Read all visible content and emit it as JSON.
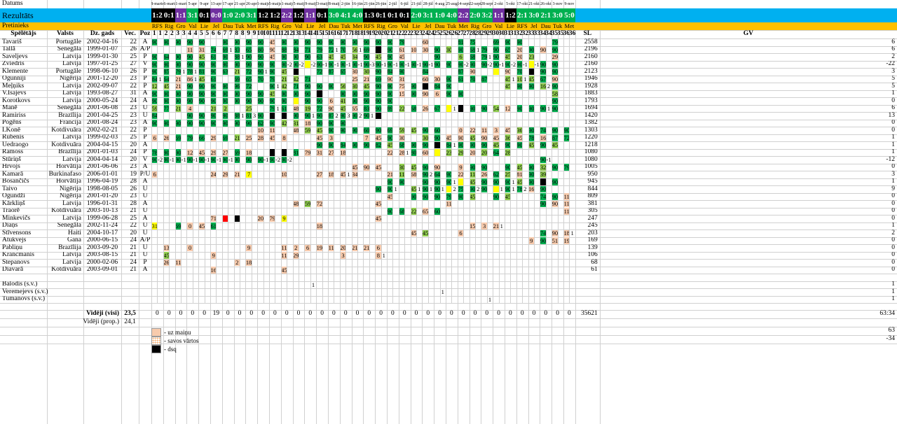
{
  "sheet": {
    "labels": {
      "datums": "Datums",
      "rezultats": "Rezultāts",
      "pretinieks": "Pretinieks",
      "speletajs": "Spēlētājs",
      "valsts": "Valsts",
      "dz_gads": "Dz. gads",
      "vec": "Vec.",
      "poz": "Poz",
      "sl": "SL",
      "gv": "GV"
    },
    "dates": [
      "8-marts",
      "16-marts",
      "31-marts",
      "5-apr",
      "9-apr",
      "13-apr",
      "17-apr",
      "21-apr",
      "26-apr",
      "1-maijs",
      "5-maijs",
      "11-maijs",
      "15-maijs",
      "19-maijs",
      "23-maijs",
      "28-maijs",
      "2-jūn",
      "16-jūn",
      "21-jūn",
      "26-jūn",
      "2-jūl",
      "6-jūl",
      "21-jūl",
      "28-jūl",
      "4-aug",
      "25-aug",
      "14-sept",
      "22-sept",
      "28-sept",
      "2-okt",
      "5-okt",
      "17-okt",
      "21-okt",
      "26-okt",
      "3-nov",
      "9-nov"
    ],
    "results": [
      "1:2",
      "0:1",
      "1:1",
      "3:1",
      "0:1",
      "0:0",
      "1:0",
      "2:0",
      "3:1",
      "1:2",
      "1:2",
      "2:2",
      "1:2",
      "1:1",
      "0:1",
      "3:0",
      "4:1",
      "4:0",
      "1:3",
      "0:1",
      "0:1",
      "0:1",
      "2:0",
      "3:1",
      "1:0",
      "4:0",
      "2:2",
      "2:0",
      "3:2",
      "1:1",
      "1:2",
      "2:1",
      "3:0",
      "2:1",
      "3:0",
      "5:0"
    ],
    "result_colors": [
      "#000000",
      "#000000",
      "#7030a0",
      "#00b050",
      "#000000",
      "#7030a0",
      "#00b050",
      "#00b050",
      "#00b050",
      "#000000",
      "#000000",
      "#7030a0",
      "#000000",
      "#7030a0",
      "#000000",
      "#00b050",
      "#00b050",
      "#00b050",
      "#000000",
      "#000000",
      "#000000",
      "#000000",
      "#00b050",
      "#00b050",
      "#00b050",
      "#00b050",
      "#7030a0",
      "#00b050",
      "#00b050",
      "#7030a0",
      "#000000",
      "#00b050",
      "#00b050",
      "#00b050",
      "#00b050",
      "#00b050"
    ],
    "opponents": [
      "RFS",
      "Rig",
      "Gro",
      "Val",
      "Lie",
      "Jel",
      "Dau",
      "Tuk",
      "Met",
      "RFS",
      "Rig",
      "Gro",
      "Val",
      "Lie",
      "Jel",
      "Dau",
      "Tuk",
      "Met",
      "RFS",
      "Rig",
      "Gro",
      "Val",
      "Lie",
      "Jel",
      "Dau",
      "Tuk",
      "Met",
      "Rig",
      "Gro",
      "Val",
      "Lie",
      "RFS",
      "Jel",
      "Dau",
      "Tuk",
      "Met"
    ],
    "players": [
      {
        "name": "Tavariš",
        "country": "Portugāle",
        "dob": "2002-04-16",
        "age": "22",
        "pos": "A",
        "sl": "2558",
        "gv": "6"
      },
      {
        "name": "Tallā",
        "country": "Senegāla",
        "dob": "1999-01-07",
        "age": "26",
        "pos": "A/P",
        "sl": "2196",
        "gv": "6"
      },
      {
        "name": "Saveljevs",
        "country": "Latvija",
        "dob": "1999-01-30",
        "age": "25",
        "pos": "P",
        "sl": "2160",
        "gv": "2"
      },
      {
        "name": "Zviedris",
        "country": "Latvija",
        "dob": "1997-01-25",
        "age": "27",
        "pos": "V",
        "sl": "2160",
        "gv": "-22"
      },
      {
        "name": "Klemente",
        "country": "Portugāle",
        "dob": "1998-06-10",
        "age": "26",
        "pos": "P",
        "sl": "2123",
        "gv": "3"
      },
      {
        "name": "Ogunniji",
        "country": "Nigērija",
        "dob": "2001-12-20",
        "age": "23",
        "pos": "P",
        "sl": "1946",
        "gv": "5"
      },
      {
        "name": "Meļņiks",
        "country": "Latvija",
        "dob": "2002-09-07",
        "age": "22",
        "pos": "P",
        "sl": "1928",
        "gv": "5"
      },
      {
        "name": "V.Isajevs",
        "country": "Latvija",
        "dob": "1993-08-27",
        "age": "31",
        "pos": "A",
        "sl": "1883",
        "gv": "1"
      },
      {
        "name": "Korotkovs",
        "country": "Latvija",
        "dob": "2000-05-24",
        "age": "24",
        "pos": "A",
        "sl": "1793",
        "gv": "0"
      },
      {
        "name": "Manē",
        "country": "Senegāla",
        "dob": "2001-06-08",
        "age": "23",
        "pos": "U",
        "sl": "1694",
        "gv": "6"
      },
      {
        "name": "Ramiriss",
        "country": "Brazīlija",
        "dob": "2001-04-25",
        "age": "23",
        "pos": "U",
        "sl": "1420",
        "gv": "13"
      },
      {
        "name": "Pogēns",
        "country": "Francija",
        "dob": "2001-08-24",
        "age": "23",
        "pos": "A",
        "sl": "1382",
        "gv": "0"
      },
      {
        "name": "I.Konē",
        "country": "Kotdivuāra",
        "dob": "2002-02-21",
        "age": "22",
        "pos": "P",
        "sl": "1303",
        "gv": "0"
      },
      {
        "name": "Rubenis",
        "country": "Latvija",
        "dob": "1999-02-03",
        "age": "25",
        "pos": "P",
        "sl": "1220",
        "gv": "1"
      },
      {
        "name": "Uedraogo",
        "country": "Kotdivuāra",
        "dob": "2004-04-15",
        "age": "20",
        "pos": "A",
        "sl": "1218",
        "gv": "1"
      },
      {
        "name": "Ramoss",
        "country": "Brazīlija",
        "dob": "2001-01-03",
        "age": "24",
        "pos": "P",
        "sl": "1080",
        "gv": "1"
      },
      {
        "name": "Stūriņš",
        "country": "Latvija",
        "dob": "2004-04-14",
        "age": "20",
        "pos": "V",
        "sl": "1080",
        "gv": "-12"
      },
      {
        "name": "Hrvojs",
        "country": "Horvātija",
        "dob": "2001-06-06",
        "age": "23",
        "pos": "A",
        "sl": "1005",
        "gv": "0"
      },
      {
        "name": "Kamarā",
        "country": "Burkinafaso",
        "dob": "2006-01-01",
        "age": "19",
        "pos": "P/U",
        "sl": "950",
        "gv": "3"
      },
      {
        "name": "Bosančičs",
        "country": "Horvātija",
        "dob": "1996-04-19",
        "age": "28",
        "pos": "A",
        "sl": "945",
        "gv": "1"
      },
      {
        "name": "Taivo",
        "country": "Nigērija",
        "dob": "1998-08-05",
        "age": "26",
        "pos": "U",
        "sl": "844",
        "gv": "9"
      },
      {
        "name": "Ogundži",
        "country": "Nigērija",
        "dob": "2001-01-20",
        "age": "23",
        "pos": "U",
        "sl": "809",
        "gv": "0"
      },
      {
        "name": "Kārkliņš",
        "country": "Latvija",
        "dob": "1996-01-31",
        "age": "28",
        "pos": "A",
        "sl": "381",
        "gv": "0"
      },
      {
        "name": "Traorē",
        "country": "Kotdivuāra",
        "dob": "2003-10-13",
        "age": "21",
        "pos": "U",
        "sl": "305",
        "gv": "0"
      },
      {
        "name": "Minkevičs",
        "country": "Latvija",
        "dob": "1999-06-28",
        "age": "25",
        "pos": "A",
        "sl": "247",
        "gv": "0"
      },
      {
        "name": "Diaņs",
        "country": "Senegāla",
        "dob": "2002-11-24",
        "age": "22",
        "pos": "U",
        "sl": "245",
        "gv": "1"
      },
      {
        "name": "Stīvensons",
        "country": "Haiti",
        "dob": "2004-10-17",
        "age": "20",
        "pos": "U",
        "sl": "203",
        "gv": "2"
      },
      {
        "name": "Atukvejs",
        "country": "Gana",
        "dob": "2000-06-15",
        "age": "24",
        "pos": "A/P",
        "sl": "169",
        "gv": "0"
      },
      {
        "name": "Pabliņu",
        "country": "Brazīlija",
        "dob": "2003-09-20",
        "age": "21",
        "pos": "U",
        "sl": "139",
        "gv": "0"
      },
      {
        "name": "Krancmanis",
        "country": "Latvija",
        "dob": "2003-08-15",
        "age": "21",
        "pos": "U",
        "sl": "106",
        "gv": "0"
      },
      {
        "name": "Stepanovs",
        "country": "Latvija",
        "dob": "2000-02-06",
        "age": "24",
        "pos": "P",
        "sl": "68",
        "gv": "0"
      },
      {
        "name": "Diavarā",
        "country": "Kotdivuāra",
        "dob": "2003-09-01",
        "age": "21",
        "pos": "A",
        "sl": "61",
        "gv": "0"
      },
      {
        "name": "",
        "country": "",
        "dob": "",
        "age": "",
        "pos": "",
        "sl": "",
        "gv": ""
      },
      {
        "name": "Balodis (s.v.)",
        "country": "",
        "dob": "",
        "age": "",
        "pos": "",
        "sl": "",
        "gv": "1"
      },
      {
        "name": "Veremejevs (s.v.)",
        "country": "",
        "dob": "",
        "age": "",
        "pos": "",
        "sl": "",
        "gv": "1"
      },
      {
        "name": "Tumanovs (s.v.)",
        "country": "",
        "dob": "",
        "age": "",
        "pos": "",
        "sl": "",
        "gv": "1"
      }
    ],
    "cells": [
      "0:g90,1:g90,2:g90,3:g90,4:g90,6:g90,7:g90,8:g90,9:g90,10:s45,11:g90,12:g90,13:g90,14:g90,15:g90,16:g90,17:g90,18:g90,19:g90,20:g90,21:g79,23:s60,26:g81,27:g75,29:g69,30:g90,31:g90,34:g79",
      "3:s11,4:s31,5:g74,6:g69^1,7:g83,8:g65,9:g80,10:s90,11:g88,12:g84,13:g71,14:g79,15:g72^1,16:g70,17:g56^1,18:g69,19:k^,20:g90,21:s61,22:s10,23:s30,24:g90,25:g30,26:g90,27:g68^1,28:g79,29:g90,30:g65,31:s20,32:g90,33:s90,34:g90",
      "0:g90,1:g64,2:g90,3:g90,4:g45,5:g61,6:g90,7:g88^1,8:g90,9:g90,10:s45,11:g90,12:g90,13:g90,14:g63,15:g45,16:g45,17:g34,18:g90,19:g45,20:g90,21:s45,24:g90,26:g6,27:g68,28:g79^1,29:g90,30:g45,31:s20,32:g23,34:s29",
      "0:g90,1:g90,2:g90,3:g90,4:g90,5:g90,6:g90,7:g90,8:g90,9:g90,10:g90,11:g90^-2,12:g90^-2,13:y^-2,14:g90^-1,15:g90^-1,16:g90^-1,17:g90^-1,18:g90^-3,19:g90^-1,20:g90^-1,21:g90^-1,22:g90^-1,23:g90^-1,24:g90,25:g90,26:g90^-2,27:g90,28:g90^-2,29:g90^-1,30:g90^-2,31:g90^-1,32:y^-1,33:g90,34:g90",
      "0:g90,1:g85,2:g79^1,3:g78^1,4:g81,5:g90,6:g63,7:g21,8:g72,9:g90^1,10:g90,11:g45,12:k,14:g72,15:g87,16:g65,17:s30,18:g30,19:g90,20:g84,21:g90,23:g84,26:g87,27:s90,29:y,30:s90,31:g70,32:k,33:g90,34:g90",
      "0:g84^1,1:g64,2:s21,3:s86^1,4:g45,5:g61,7:g69,8:g65,9:g70,10:g79,11:g21,12:g42,13:g71,17:s25,18:s21,19:g69,20:s90,21:s31,23:s60,24:s30,25:g90,26:g61,27:g70,28:g87,30:g45^1,31:g10^1,32:g45,33:g67,34:s90",
      "0:g12,1:g45,2:s21,3:g90,4:g90,5:g90,6:g90,7:g96,8:g72,10:g90^1,11:g42,12:g71,13:g90,14:g90,15:g90,16:g56,17:g30,18:g45,19:g90,20:g90,21:s75,22:g90,23:k,24:g84,25:g90,30:g45,31:g90,32:g90,33:g16^2,34:g90",
      "0:g90,1:g90,2:g90,3:g90,4:g90,5:g90,6:g90,7:g90,8:g90,9:g90,10:g45,11:g90,12:g90,13:g90,14:k,16:g90,17:g90,18:g90,19:g90,20:g90,21:s15,22:g90,23:s90,24:s6,25:g90,26:g90,34:g58",
      "0:g90,1:g90,2:g90,3:g90,4:g90,5:g90,6:g90,7:g90,8:g90,9:g90,10:g90,11:g90,12:y,13:g90,14:g90,15:s6,16:g41,17:g90,18:g90,19:g90,20:g90,34:g90",
      "0:g59,1:g77,2:g21,3:s4,5:g21,6:g2,8:g25,10:g79^1,11:g61,12:s48,13:g19,14:g72,15:s90,16:g45,17:s65,18:g83,19:g90,20:g89,21:g22,22:g68,23:s26,24:g67,25:y^1,26:k,27:g90,28:g90,29:g54,30:s12,31:g90,32:g90,33:g90^1,34:g90",
      "0:g84,3:g90,4:g90,5:g90,6:g90,7:g88^1,8:g81^3,9:g90,10:k,11:k,12:g90,13:g90^1,14:g90,15:g87^2,16:g90^3,17:g90^2,18:g90^1,19:k",
      "0:g90,1:g90,2:g90,3:g90,4:g90,5:g90,6:g90,7:g90,8:g90,9:g62,10:g90,11:g42,12:g31,13:s18,14:g90,15:g90,16:g90",
      "9:s10,10:s11,12:s48,13:g59,14:g45,15:g90,16:g90,17:g90,18:g60,19:g90,20:g69,21:g59,22:g45,23:g90,24:g60,26:s0,27:s22,28:s11,29:s3,30:s45,31:g36,32:g90,33:g74,34:g90,35:g90",
      "0:s6,1:s26,2:g69,3:g79,4:g66,5:s29,6:g69,7:g21,8:s25,9:s28,10:s45,11:s8,14:s45,15:s3,18:s7,19:s45,20:g90,21:s30,23:g30,24:g90,25:s45,26:s90,27:g45,28:s90,29:s45,30:g36,31:s45,32:g78,33:s16,34:g87,35:g72",
      "14:g90,15:g90,16:g84,17:g90,18:g90,19:g82,20:g45,21:g68,22:g90,23:g90,24:k,25:g84^1,26:g90,27:g90,28:g90,29:g45,30:g90,31:g90,32:g45,33:g90,34:g45",
      "0:g78,1:g90,2:g90,3:s12,4:s45,5:s29,6:s27,7:g69,8:s18,10:k,11:k,12:g81,13:s79,14:s31,15:s27,16:s18,20:s22,21:s28^1,22:g80,23:s60,24:y,25:g23,26:g29,27:s20,28:g20,29:g64,30:g28",
      "0:g90^-2,1:g90^-1,2:g90^-1,3:g90^-1,4:g90^-1,5:g90^-1,6:g90^-1,7:g90,8:g90,9:g90^-1,10:g90^-2,11:g90^-2,33:g90^-1",
      "17:s45,18:s90,19:s45,21:g30,22:g45,23:g90,24:s90,26:s9,27:g90,28:g90,30:g90,31:g45,32:g90,33:g32,34:g90,35:g79",
      "0:s6,5:s24,6:s29,7:s21,8:y7,11:s10,14:s27,15:s18,16:s45^1,17:s34,20:s21,21:g11,22:s68,23:g90^2,24:g64,25:g90,26:s22,27:g11,28:s26,29:g62,30:g25,31:s81,32:g90,33:g39",
      "20:g90,21:g90,23:g90,24:g90,25:g90^1,26:y,27:g45,28:g90,29:g90,30:g90^1,31:g45,32:g90,33:k,34:g90",
      "19:g90,20:g90^1,22:g45^1,23:g90^1,24:g90^1,25:y^2,26:g75,27:g90^2,28:g90,29:y^1,30:g90^1,31:g78^2,32:s16,33:g90",
      "20:s45,22:g90,23:g90,24:g90,25:g79,26:g90,27:g45,29:g90,30:g45,33:g74,34:g90,35:s11",
      "12:s48,13:g59,14:s72,19:s45,25:s11,33:g90,34:s90,35:s11",
      "20:g90,21:g68,22:g22,23:s65,24:g60,35:s11",
      "5:s71,6:r,7:k,9:s20,10:s79,11:y9,19:s45",
      "0:y31,2:g69,3:s0,4:s45,5:g61,14:s18,27:s15,28:s3,29:s21^1",
      "22:s45,23:g45,26:s6,33:g74,34:s90,35:s18^1",
      "32:s9,33:g90,34:s51,35:s19",
      "1:s13,3:s0,8:s9,11:s11,12:s2,13:s6,14:s19,15:s11,16:s20,17:s21,18:s21,19:s6",
      "1:g45,5:s9,11:s11,12:s29,16:s3,19:s8^1",
      "1:s26,2:s11,7:s2,8:s18",
      "5:s16,11:s45",
      "",
      "",
      "",
      "",
      ""
    ],
    "extra_text": [
      {
        "id": "bal",
        "col": 13,
        "row": 33,
        "text": "1"
      },
      {
        "id": "ver",
        "col": 24,
        "row": 34,
        "text": "1"
      },
      {
        "id": "tum",
        "col": 28,
        "row": 35,
        "text": "1"
      }
    ],
    "footer": {
      "videji_visi_label": "Vidēji (visi)",
      "videji_visi_age": "23,5",
      "videji_prop_label": "Vidēji (prop.)",
      "videji_prop_age": "24,1",
      "totals": [
        "0",
        "0",
        "0",
        "0",
        "0",
        "19",
        "0",
        "0",
        "0",
        "0",
        "0",
        "0",
        "0",
        "0",
        "0",
        "0",
        "0",
        "0",
        "0",
        "0",
        "0",
        "0",
        "0",
        "0",
        "0",
        "0",
        "0",
        "0",
        "0",
        "0",
        "0",
        "0",
        "0",
        "0",
        "0",
        "0"
      ],
      "total_sl": "35621",
      "total_gv": "63:34",
      "gv_for": "63",
      "gv_against": "-34"
    },
    "legend": {
      "sub": "- uz maiņu",
      "own_goal": "- savos vārtos",
      "dsq": "- dsq"
    },
    "colors": {
      "green_dark": "#00b050",
      "green_light": "#92d050",
      "salmon": "#f8cbad",
      "yellow": "#ffff00",
      "black": "#000000",
      "red": "#ff0000",
      "header_blue": "#00b0f0",
      "header_orange": "#ffc000",
      "purple": "#7030a0"
    }
  }
}
